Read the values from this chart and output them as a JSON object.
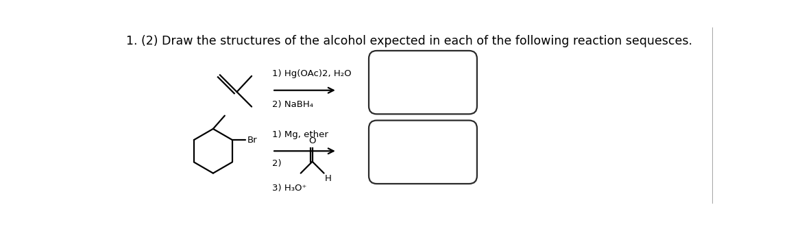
{
  "title": "1. (2) Draw the structures of the alcohol expected in each of the following reaction sequesces.",
  "bg_color": "#ffffff",
  "title_fontsize": 12.5,
  "rxn1_label1": "1) Hg(OAc)2, H₂O",
  "rxn1_label2": "2) NaBH₄",
  "rxn2_label1": "1) Mg, ether",
  "rxn2_label3": "3) H₃O⁺",
  "line_color": "#000000",
  "box_fill": "#ffffff",
  "box_edge": "#2a2a2a",
  "lw": 1.6
}
